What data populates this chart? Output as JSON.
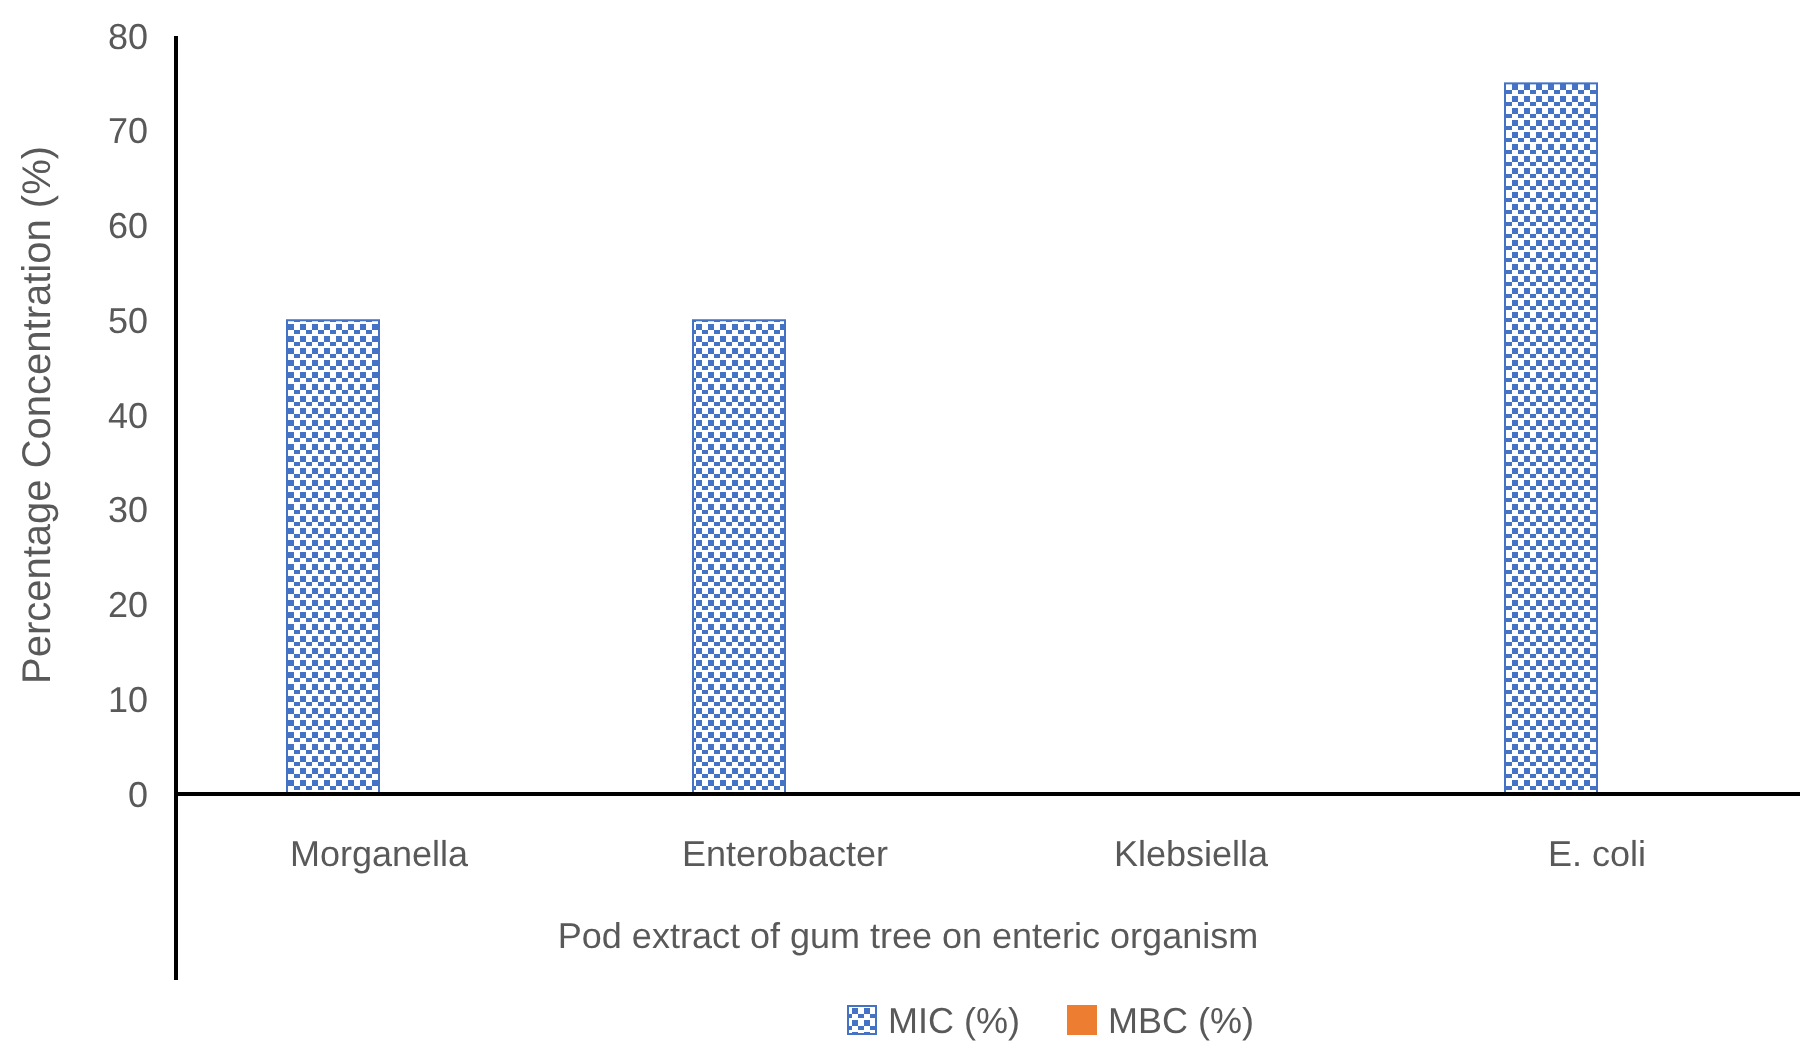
{
  "chart_data": {
    "type": "bar",
    "xlabel": "Pod extract of gum tree on enteric organism",
    "ylabel": "Percentage Concentration (%)",
    "categories": [
      "Morganella",
      "Enterobacter",
      "Klebsiella",
      "E. coli"
    ],
    "series": [
      {
        "name": "MIC (%)",
        "color": "#4472c4",
        "values": [
          50,
          50,
          0,
          75
        ]
      },
      {
        "name": "MBC (%)",
        "color": "#ed7d31",
        "values": [
          0,
          0,
          0,
          0
        ]
      }
    ],
    "ylim": [
      0,
      80
    ],
    "yticks": [
      0,
      10,
      20,
      30,
      40,
      50,
      60,
      70,
      80
    ],
    "grid": false,
    "legend": "bottom"
  }
}
